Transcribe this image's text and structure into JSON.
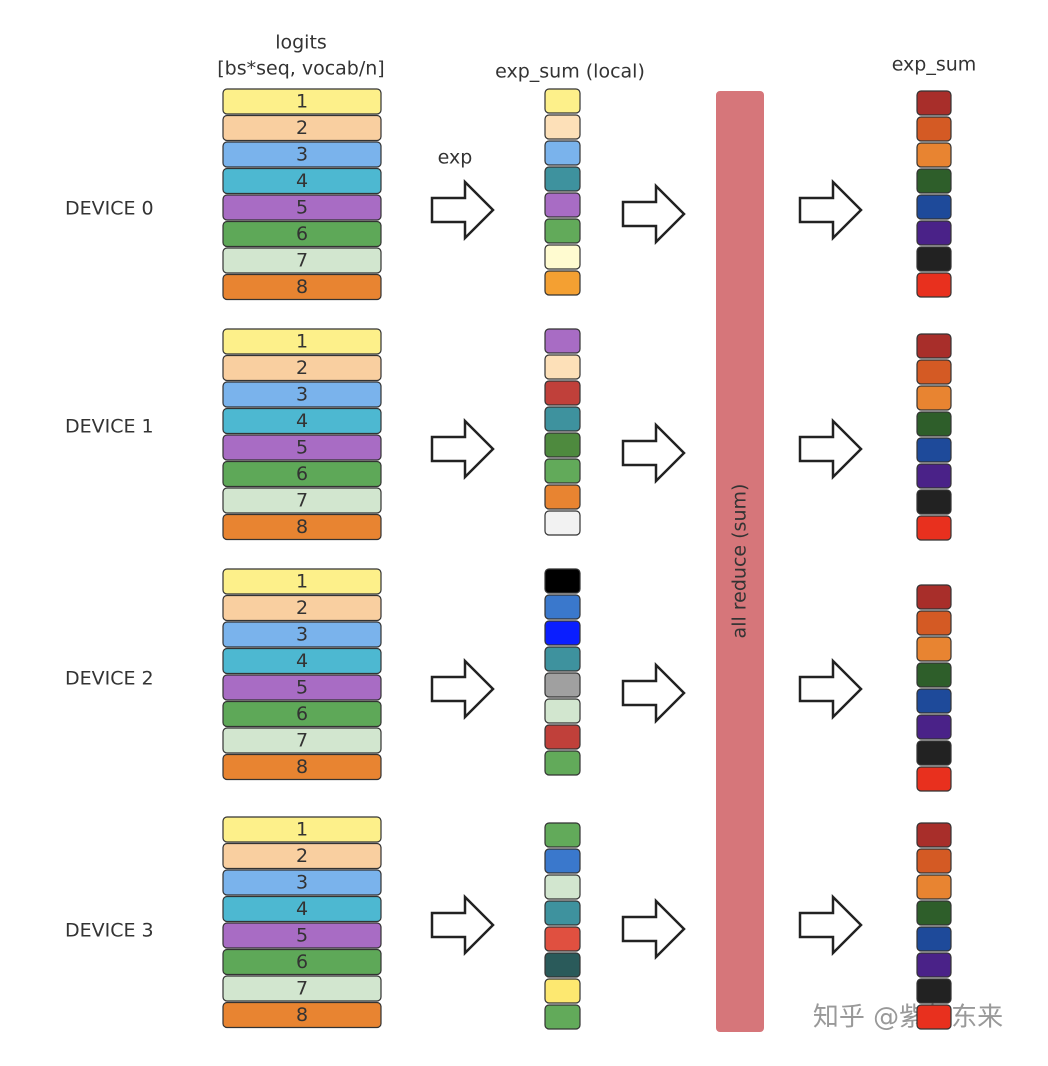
{
  "header": {
    "logits_title": "logits",
    "logits_shape": "[bs*seq, vocab/n]",
    "local_title": "exp_sum (local)",
    "global_title": "exp_sum",
    "exp_label": "exp"
  },
  "devices": [
    {
      "label": "DEVICE 0",
      "logits": [
        "1",
        "2",
        "3",
        "4",
        "5",
        "6",
        "7",
        "8"
      ],
      "local_colors": [
        "#fdf08a",
        "#fde0b8",
        "#7ab3ec",
        "#3e929e",
        "#a86cc4",
        "#62aa5a",
        "#fffbd0",
        "#f4a032"
      ]
    },
    {
      "label": "DEVICE 1",
      "logits": [
        "1",
        "2",
        "3",
        "4",
        "5",
        "6",
        "7",
        "8"
      ],
      "local_colors": [
        "#a86cc4",
        "#fde0b8",
        "#c0403a",
        "#3e929e",
        "#4e8a3e",
        "#62aa5a",
        "#e88431",
        "#f2f2f2"
      ]
    },
    {
      "label": "DEVICE 2",
      "logits": [
        "1",
        "2",
        "3",
        "4",
        "5",
        "6",
        "7",
        "8"
      ],
      "local_colors": [
        "#000000",
        "#3a78cc",
        "#0a1eff",
        "#3e929e",
        "#a0a0a0",
        "#d2e6cf",
        "#c0403a",
        "#62aa5a"
      ]
    },
    {
      "label": "DEVICE 3",
      "logits": [
        "1",
        "2",
        "3",
        "4",
        "5",
        "6",
        "7",
        "8"
      ],
      "local_colors": [
        "#62aa5a",
        "#3a78cc",
        "#d2e6cf",
        "#3e929e",
        "#e05040",
        "#2a5a5a",
        "#fde870",
        "#62aa5a"
      ]
    }
  ],
  "logit_colors": [
    "#fdf08a",
    "#f9cfa0",
    "#7ab3ec",
    "#4db8d1",
    "#a86cc4",
    "#5ea858",
    "#d2e6cf",
    "#e88431"
  ],
  "global_colors": [
    "#a82e2a",
    "#d45a24",
    "#e88431",
    "#2e5e2a",
    "#1e4a9a",
    "#4a2288",
    "#222222",
    "#e8301e"
  ],
  "all_reduce": {
    "label": "all reduce (sum)",
    "color": "#d6767a"
  },
  "watermark": "知乎 @紫气东来"
}
